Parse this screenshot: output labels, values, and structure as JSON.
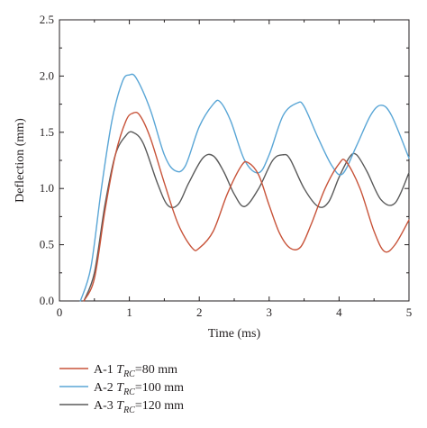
{
  "chart_data": {
    "type": "line",
    "xlabel": "Time (ms)",
    "ylabel": "Deflection (mm)",
    "xlim": [
      0,
      5
    ],
    "ylim": [
      0,
      2.5
    ],
    "xticks": [
      "0",
      "1",
      "2",
      "3",
      "4",
      "5"
    ],
    "yticks": [
      "0.0",
      "0.5",
      "1.0",
      "1.5",
      "2.0",
      "2.5"
    ],
    "grid": false,
    "legend_position": "bottom-left, below plot",
    "series": [
      {
        "name": "A-1",
        "legend_label": {
          "prefix": "A-1 ",
          "var": "T",
          "sub": "RC",
          "suffix": "=80 mm"
        },
        "color": "#c8543a",
        "x": [
          0.35,
          0.5,
          0.65,
          0.8,
          0.95,
          1.05,
          1.15,
          1.3,
          1.5,
          1.7,
          1.9,
          2.0,
          2.2,
          2.4,
          2.6,
          2.7,
          2.85,
          3.0,
          3.15,
          3.3,
          3.45,
          3.6,
          3.8,
          4.0,
          4.1,
          4.3,
          4.5,
          4.65,
          4.8,
          5.0
        ],
        "y": [
          0.0,
          0.2,
          0.8,
          1.3,
          1.6,
          1.67,
          1.65,
          1.45,
          1.05,
          0.68,
          0.47,
          0.47,
          0.62,
          0.95,
          1.2,
          1.23,
          1.12,
          0.85,
          0.6,
          0.47,
          0.48,
          0.68,
          1.0,
          1.22,
          1.24,
          1.0,
          0.62,
          0.44,
          0.5,
          0.72
        ]
      },
      {
        "name": "A-2",
        "legend_label": {
          "prefix": "A-2 ",
          "var": "T",
          "sub": "RC",
          "suffix": "=100 mm"
        },
        "color": "#5aa6d6",
        "x": [
          0.3,
          0.45,
          0.6,
          0.75,
          0.9,
          1.0,
          1.1,
          1.3,
          1.5,
          1.65,
          1.8,
          2.0,
          2.2,
          2.3,
          2.45,
          2.65,
          2.85,
          3.0,
          3.2,
          3.4,
          3.5,
          3.7,
          3.9,
          4.05,
          4.25,
          4.45,
          4.6,
          4.75,
          5.0
        ],
        "y": [
          0.0,
          0.3,
          1.0,
          1.6,
          1.95,
          2.01,
          1.98,
          1.7,
          1.3,
          1.16,
          1.2,
          1.55,
          1.75,
          1.77,
          1.6,
          1.25,
          1.14,
          1.3,
          1.65,
          1.76,
          1.73,
          1.45,
          1.2,
          1.13,
          1.38,
          1.65,
          1.74,
          1.65,
          1.27
        ]
      },
      {
        "name": "A-3",
        "legend_label": {
          "prefix": "A-3 ",
          "var": "T",
          "sub": "RC",
          "suffix": "=120 mm"
        },
        "color": "#5a5a5a",
        "x": [
          0.35,
          0.5,
          0.65,
          0.8,
          0.95,
          1.05,
          1.2,
          1.4,
          1.55,
          1.7,
          1.85,
          2.05,
          2.2,
          2.35,
          2.5,
          2.65,
          2.85,
          3.05,
          3.2,
          3.3,
          3.5,
          3.7,
          3.85,
          4.0,
          4.15,
          4.25,
          4.4,
          4.6,
          4.8,
          5.0
        ],
        "y": [
          0.0,
          0.25,
          0.85,
          1.3,
          1.47,
          1.5,
          1.4,
          1.05,
          0.85,
          0.86,
          1.05,
          1.27,
          1.29,
          1.15,
          0.95,
          0.84,
          1.0,
          1.25,
          1.3,
          1.26,
          1.0,
          0.84,
          0.88,
          1.1,
          1.28,
          1.3,
          1.15,
          0.9,
          0.87,
          1.14
        ]
      }
    ]
  }
}
